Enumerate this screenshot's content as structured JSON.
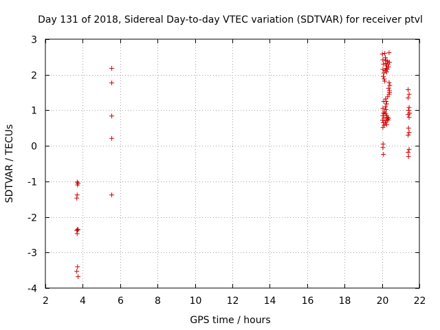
{
  "chart_data": {
    "type": "scatter",
    "title": "Day 131 of 2018, Sidereal Day-to-day VTEC variation (SDTVAR) for receiver ptvl",
    "xlabel": "GPS time / hours",
    "ylabel": "SDTVAR / TECUs",
    "xlim": [
      2,
      22
    ],
    "ylim": [
      -4,
      3
    ],
    "xticks": [
      2,
      4,
      6,
      8,
      10,
      12,
      14,
      16,
      18,
      20,
      22
    ],
    "yticks": [
      -4,
      -3,
      -2,
      -1,
      0,
      1,
      2,
      3
    ],
    "grid": true,
    "marker": "plus",
    "color": "#cc0000",
    "series": [
      {
        "name": "SDTVAR",
        "points": [
          [
            3.7,
            -1.02
          ],
          [
            3.75,
            -1.05
          ],
          [
            3.72,
            -1.1
          ],
          [
            3.7,
            -1.38
          ],
          [
            3.68,
            -1.47
          ],
          [
            3.72,
            -2.35
          ],
          [
            3.68,
            -2.38
          ],
          [
            3.75,
            -2.36
          ],
          [
            3.7,
            -2.47
          ],
          [
            3.72,
            -3.4
          ],
          [
            3.68,
            -3.53
          ],
          [
            3.75,
            -3.68
          ],
          [
            5.55,
            2.18
          ],
          [
            5.55,
            1.77
          ],
          [
            5.55,
            0.84
          ],
          [
            5.55,
            0.21
          ],
          [
            5.55,
            -1.38
          ],
          [
            20.02,
            2.58
          ],
          [
            20.05,
            2.42
          ],
          [
            20.08,
            2.3
          ],
          [
            20.05,
            2.15
          ],
          [
            20.1,
            2.05
          ],
          [
            20.07,
            1.95
          ],
          [
            20.12,
            1.88
          ],
          [
            20.15,
            1.82
          ],
          [
            20.1,
            1.25
          ],
          [
            20.05,
            1.05
          ],
          [
            20.08,
            0.92
          ],
          [
            20.05,
            0.85
          ],
          [
            20.1,
            0.78
          ],
          [
            20.03,
            0.72
          ],
          [
            20.08,
            0.65
          ],
          [
            20.12,
            0.58
          ],
          [
            20.05,
            0.52
          ],
          [
            20.06,
            0.05
          ],
          [
            20.05,
            -0.05
          ],
          [
            20.08,
            -0.24
          ],
          [
            20.15,
            2.6
          ],
          [
            20.18,
            2.48
          ],
          [
            20.22,
            2.4
          ],
          [
            20.2,
            2.32
          ],
          [
            20.25,
            2.25
          ],
          [
            20.22,
            2.18
          ],
          [
            20.18,
            2.12
          ],
          [
            20.25,
            2.08
          ],
          [
            20.3,
            2.38
          ],
          [
            20.33,
            2.3
          ],
          [
            20.35,
            2.22
          ],
          [
            20.28,
            2.15
          ],
          [
            20.4,
            2.35
          ],
          [
            20.38,
            2.62
          ],
          [
            20.2,
            1.32
          ],
          [
            20.22,
            1.25
          ],
          [
            20.25,
            1.18
          ],
          [
            20.18,
            1.1
          ],
          [
            20.22,
            1.02
          ],
          [
            20.15,
            0.95
          ],
          [
            20.2,
            0.9
          ],
          [
            20.25,
            0.85
          ],
          [
            20.28,
            0.8
          ],
          [
            20.3,
            0.75
          ],
          [
            20.22,
            0.7
          ],
          [
            20.18,
            0.65
          ],
          [
            20.25,
            0.6
          ],
          [
            20.32,
            0.72
          ],
          [
            20.35,
            0.78
          ],
          [
            20.38,
            1.45
          ],
          [
            20.4,
            1.55
          ],
          [
            20.35,
            1.62
          ],
          [
            20.42,
            1.7
          ],
          [
            20.38,
            1.78
          ],
          [
            20.4,
            1.5
          ],
          [
            20.3,
            1.38
          ],
          [
            21.4,
            1.58
          ],
          [
            21.45,
            1.45
          ],
          [
            21.4,
            1.35
          ],
          [
            21.45,
            1.08
          ],
          [
            21.42,
            1.0
          ],
          [
            21.48,
            0.92
          ],
          [
            21.4,
            0.88
          ],
          [
            21.45,
            0.8
          ],
          [
            21.42,
            0.5
          ],
          [
            21.45,
            0.38
          ],
          [
            21.4,
            0.3
          ],
          [
            21.45,
            -0.1
          ],
          [
            21.4,
            -0.18
          ],
          [
            21.42,
            -0.3
          ]
        ]
      }
    ]
  }
}
